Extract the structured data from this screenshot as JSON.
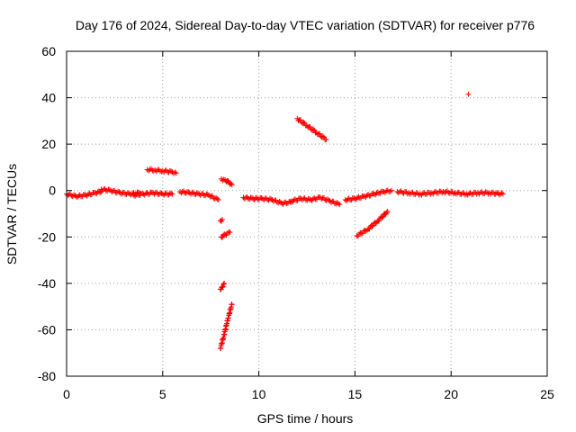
{
  "chart_data": {
    "type": "scatter",
    "title": "Day 176 of 2024, Sidereal Day-to-day VTEC variation (SDTVAR) for receiver p776",
    "xlabel": "GPS time / hours",
    "ylabel": "SDTVAR / TECUs",
    "xlim": [
      0,
      25
    ],
    "ylim": [
      -80,
      60
    ],
    "xticks": [
      0,
      5,
      10,
      15,
      20,
      25
    ],
    "yticks": [
      -80,
      -60,
      -40,
      -20,
      0,
      20,
      40,
      60
    ],
    "xtick_labels": [
      "0",
      "5",
      "10",
      "15",
      "20",
      "25"
    ],
    "ytick_labels": [
      "-80",
      "-60",
      "-40",
      "-20",
      "0",
      "20",
      "40",
      "60"
    ],
    "grid": true,
    "marker": "+",
    "series": [
      {
        "name": "SDTVAR",
        "color": "#ff0000",
        "segments": [
          {
            "x": [
              0.0,
              0.5,
              1.0,
              1.5,
              1.8
            ],
            "y": [
              -1.5,
              -2.5,
              -2.0,
              -1.0,
              -0.5
            ]
          },
          {
            "x": [
              1.8,
              2.3,
              2.8,
              3.3,
              3.8
            ],
            "y": [
              0.5,
              0.0,
              -1.0,
              -1.5,
              -1.0
            ]
          },
          {
            "x": [
              3.5,
              4.0,
              4.5,
              5.0,
              5.5
            ],
            "y": [
              -2.0,
              -1.5,
              -1.0,
              -1.5,
              -1.5
            ]
          },
          {
            "x": [
              4.2,
              4.6,
              5.0,
              5.5,
              5.7
            ],
            "y": [
              9.0,
              8.8,
              8.5,
              8.0,
              7.5
            ]
          },
          {
            "x": [
              5.9,
              6.4,
              6.9,
              7.4,
              7.9
            ],
            "y": [
              -0.5,
              -1.0,
              -1.5,
              -2.0,
              -4.0
            ]
          },
          {
            "x": [
              8.05,
              8.25,
              8.45,
              8.6
            ],
            "y": [
              5.0,
              4.5,
              3.5,
              2.5
            ]
          },
          {
            "x": [
              8.0,
              8.1
            ],
            "y": [
              -13.0,
              -12.5
            ]
          },
          {
            "x": [
              8.05,
              8.25,
              8.5
            ],
            "y": [
              -20.0,
              -19.0,
              -18.0
            ]
          },
          {
            "x": [
              8.0,
              8.1,
              8.2
            ],
            "y": [
              -42.5,
              -41.5,
              -40.0
            ]
          },
          {
            "x": [
              8.0,
              8.2,
              8.4,
              8.6
            ],
            "y": [
              -68.0,
              -62.0,
              -55.0,
              -49.0
            ]
          },
          {
            "x": [
              9.2,
              9.7,
              10.2,
              10.7,
              11.2,
              11.7
            ],
            "y": [
              -3.0,
              -3.5,
              -3.5,
              -4.0,
              -5.5,
              -5.0
            ]
          },
          {
            "x": [
              11.7,
              12.2,
              12.7,
              13.2,
              13.7,
              14.2
            ],
            "y": [
              -4.5,
              -3.5,
              -4.0,
              -3.0,
              -4.5,
              -6.0
            ]
          },
          {
            "x": [
              12.0,
              12.5,
              13.0,
              13.5
            ],
            "y": [
              31.0,
              28.0,
              25.0,
              22.0
            ]
          },
          {
            "x": [
              14.5,
              15.0,
              15.5,
              16.0,
              16.5,
              16.9
            ],
            "y": [
              -4.0,
              -3.5,
              -2.5,
              -1.5,
              -0.5,
              0.0
            ]
          },
          {
            "x": [
              15.1,
              15.7,
              16.2,
              16.7
            ],
            "y": [
              -19.5,
              -16.5,
              -13.0,
              -9.0
            ]
          },
          {
            "x": [
              17.2,
              17.8,
              18.4,
              19.0,
              19.6
            ],
            "y": [
              -0.5,
              -1.0,
              -1.5,
              -1.0,
              -0.5
            ]
          },
          {
            "x": [
              19.6,
              20.2,
              20.8,
              21.4,
              22.0,
              22.7
            ],
            "y": [
              -0.5,
              -1.0,
              -1.5,
              -1.0,
              -1.0,
              -1.5
            ]
          },
          {
            "x": [
              20.9
            ],
            "y": [
              41.5
            ]
          }
        ]
      }
    ]
  }
}
